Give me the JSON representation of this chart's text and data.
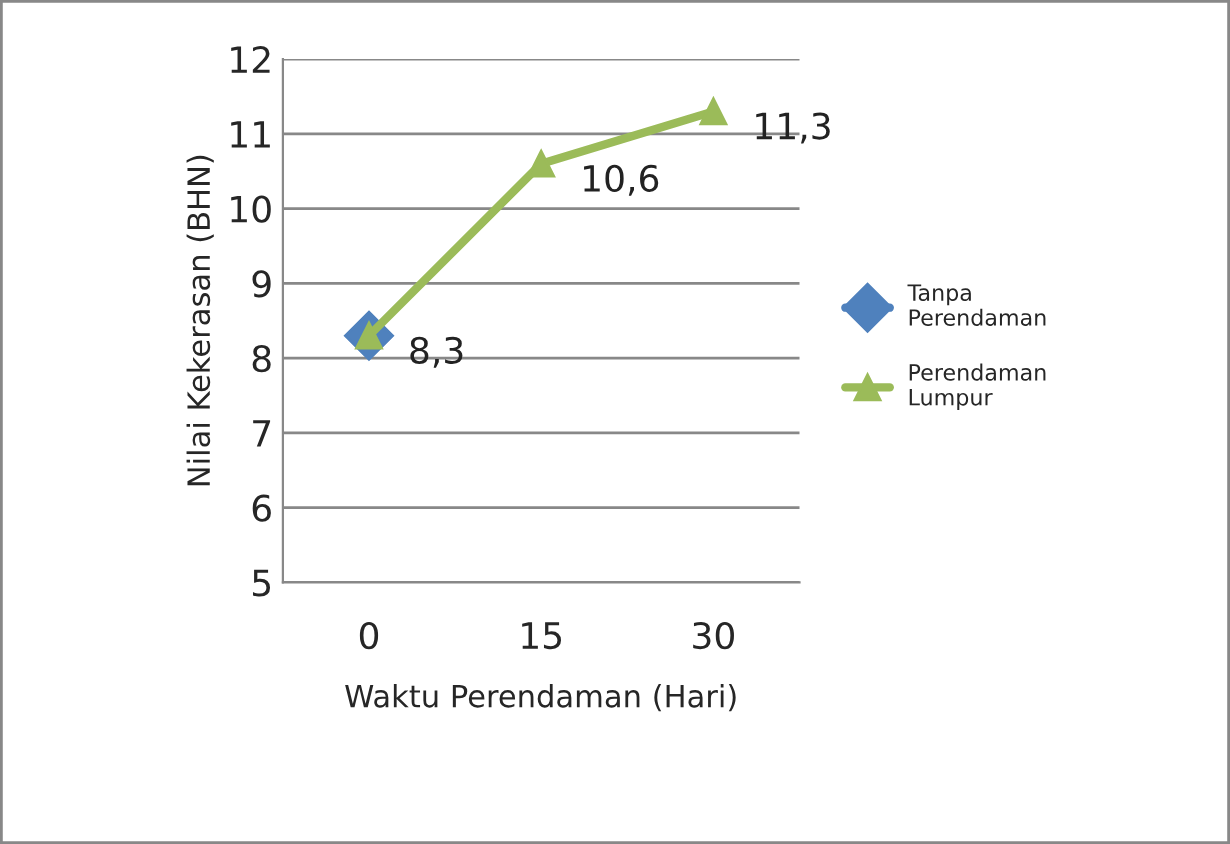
{
  "chart_data": {
    "type": "line",
    "xlabel": "Waktu Perendaman (Hari)",
    "ylabel": "Nilai Kekerasan (BHN)",
    "categories": [
      "0",
      "15",
      "30"
    ],
    "series": [
      {
        "name": "Tanpa Perendaman",
        "color": "#4f81bd",
        "marker": "diamond",
        "values": [
          8.3,
          null,
          null
        ]
      },
      {
        "name": "Perendaman Lumpur",
        "color": "#9bbb59",
        "marker": "triangle",
        "values": [
          8.3,
          10.6,
          11.3
        ],
        "value_labels": [
          "8,3",
          "10,6",
          "11,3"
        ]
      }
    ],
    "ylim": [
      5,
      12
    ],
    "yticks": [
      5,
      6,
      7,
      8,
      9,
      10,
      11,
      12
    ],
    "grid": "y",
    "legend": "right"
  }
}
